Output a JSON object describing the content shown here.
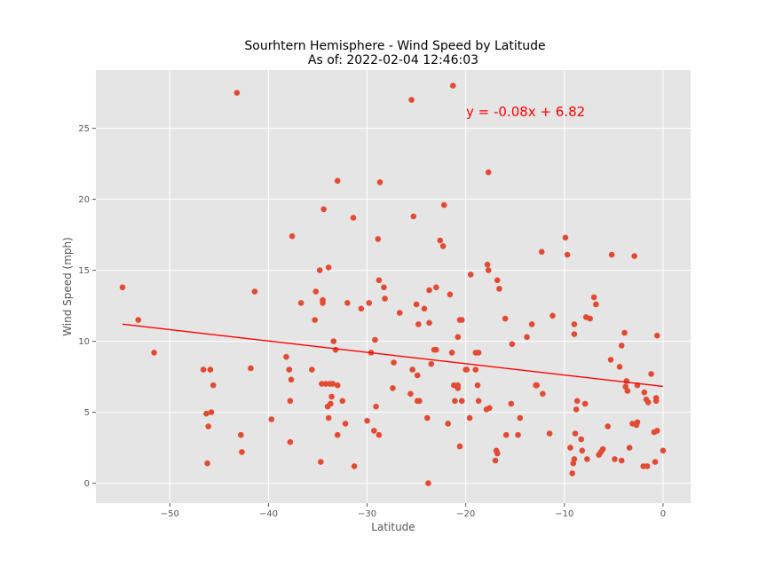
{
  "chart_data": {
    "type": "scatter",
    "title": "Sourhtern Hemisphere - Wind Speed by Latitude",
    "subtitle": "As of: 2022-02-04 12:46:03",
    "xlabel": "Latitude",
    "ylabel": "Wind Speed  (mph)",
    "xlim": [
      -57.5,
      2.8
    ],
    "ylim": [
      -1.4,
      29.1
    ],
    "xticks": [
      -50,
      -40,
      -30,
      -20,
      -10,
      0
    ],
    "yticks": [
      0,
      5,
      10,
      15,
      20,
      25
    ],
    "xtick_labels": [
      "−50",
      "−40",
      "−30",
      "−20",
      "−10",
      "0"
    ],
    "ytick_labels": [
      "0",
      "5",
      "10",
      "15",
      "20",
      "25"
    ],
    "grid": true,
    "colors": {
      "background": "#e5e5e5",
      "grid": "#ffffff",
      "points": "#e24a33",
      "regression": "#ff0000"
    },
    "regression": {
      "equation": "y = -0.08x + 6.82",
      "slope": -0.08,
      "intercept": 6.82,
      "x_range": [
        -54.8,
        0
      ]
    },
    "points": [
      [
        -54.8,
        13.8
      ],
      [
        -53.2,
        11.5
      ],
      [
        -51.6,
        9.2
      ],
      [
        -46.6,
        8.0
      ],
      [
        -46.3,
        4.9
      ],
      [
        -46.2,
        1.4
      ],
      [
        -46.1,
        4.0
      ],
      [
        -45.9,
        8.0
      ],
      [
        -45.8,
        5.0
      ],
      [
        -45.6,
        6.9
      ],
      [
        -43.2,
        27.5
      ],
      [
        -42.8,
        3.4
      ],
      [
        -42.7,
        2.2
      ],
      [
        -41.8,
        8.1
      ],
      [
        -41.4,
        13.5
      ],
      [
        -39.7,
        4.5
      ],
      [
        -38.2,
        8.9
      ],
      [
        -37.9,
        8.0
      ],
      [
        -37.8,
        5.8
      ],
      [
        -37.8,
        2.9
      ],
      [
        -37.7,
        7.3
      ],
      [
        -37.6,
        17.4
      ],
      [
        -36.7,
        12.7
      ],
      [
        -35.6,
        8.0
      ],
      [
        -35.3,
        11.5
      ],
      [
        -35.2,
        13.5
      ],
      [
        -34.8,
        15.0
      ],
      [
        -34.7,
        1.5
      ],
      [
        -34.6,
        7.0
      ],
      [
        -34.5,
        12.9
      ],
      [
        -34.5,
        12.7
      ],
      [
        -34.4,
        19.3
      ],
      [
        -34.2,
        7.0
      ],
      [
        -34.0,
        5.4
      ],
      [
        -33.9,
        4.6
      ],
      [
        -33.9,
        15.2
      ],
      [
        -33.8,
        7.0
      ],
      [
        -33.7,
        5.6
      ],
      [
        -33.6,
        6.1
      ],
      [
        -33.5,
        7.0
      ],
      [
        -33.4,
        10.0
      ],
      [
        -33.2,
        9.4
      ],
      [
        -33.0,
        6.9
      ],
      [
        -33.0,
        3.4
      ],
      [
        -33.0,
        21.3
      ],
      [
        -32.5,
        5.8
      ],
      [
        -32.2,
        4.2
      ],
      [
        -32.0,
        12.7
      ],
      [
        -31.4,
        18.7
      ],
      [
        -31.3,
        1.2
      ],
      [
        -30.6,
        12.3
      ],
      [
        -30.0,
        4.4
      ],
      [
        -29.8,
        12.7
      ],
      [
        -29.6,
        9.2
      ],
      [
        -29.3,
        3.7
      ],
      [
        -29.2,
        10.1
      ],
      [
        -29.1,
        5.4
      ],
      [
        -28.9,
        17.2
      ],
      [
        -28.8,
        14.3
      ],
      [
        -28.8,
        3.4
      ],
      [
        -28.7,
        21.2
      ],
      [
        -28.3,
        13.8
      ],
      [
        -28.2,
        13.0
      ],
      [
        -27.4,
        6.7
      ],
      [
        -27.3,
        8.5
      ],
      [
        -26.7,
        12.0
      ],
      [
        -25.6,
        6.3
      ],
      [
        -25.5,
        27.0
      ],
      [
        -25.4,
        8.0
      ],
      [
        -25.3,
        18.8
      ],
      [
        -25.0,
        12.6
      ],
      [
        -24.9,
        7.6
      ],
      [
        -24.9,
        5.8
      ],
      [
        -24.8,
        11.2
      ],
      [
        -24.7,
        5.8
      ],
      [
        -24.2,
        12.3
      ],
      [
        -23.9,
        4.6
      ],
      [
        -23.8,
        0.0
      ],
      [
        -23.7,
        13.6
      ],
      [
        -23.7,
        11.3
      ],
      [
        -23.5,
        8.4
      ],
      [
        -23.2,
        9.4
      ],
      [
        -23.0,
        13.8
      ],
      [
        -23.0,
        9.4
      ],
      [
        -22.6,
        17.1
      ],
      [
        -22.3,
        16.7
      ],
      [
        -22.2,
        19.6
      ],
      [
        -21.8,
        4.2
      ],
      [
        -21.6,
        13.3
      ],
      [
        -21.4,
        9.2
      ],
      [
        -21.3,
        28.0
      ],
      [
        -21.2,
        6.9
      ],
      [
        -21.1,
        5.8
      ],
      [
        -20.8,
        6.7
      ],
      [
        -20.8,
        6.9
      ],
      [
        -20.8,
        10.3
      ],
      [
        -20.6,
        2.6
      ],
      [
        -20.6,
        11.5
      ],
      [
        -20.4,
        11.5
      ],
      [
        -20.4,
        5.8
      ],
      [
        -20.0,
        8.0
      ],
      [
        -19.9,
        8.0
      ],
      [
        -19.6,
        4.6
      ],
      [
        -19.5,
        14.7
      ],
      [
        -19.0,
        9.2
      ],
      [
        -19.0,
        8.0
      ],
      [
        -18.8,
        6.9
      ],
      [
        -18.7,
        9.2
      ],
      [
        -18.7,
        5.8
      ],
      [
        -17.9,
        5.2
      ],
      [
        -17.8,
        15.4
      ],
      [
        -17.7,
        21.9
      ],
      [
        -17.7,
        15.0
      ],
      [
        -17.6,
        5.3
      ],
      [
        -17.0,
        1.6
      ],
      [
        -16.9,
        2.3
      ],
      [
        -16.8,
        2.1
      ],
      [
        -16.8,
        14.3
      ],
      [
        -16.6,
        13.7
      ],
      [
        -16.0,
        11.6
      ],
      [
        -15.9,
        3.4
      ],
      [
        -15.4,
        5.6
      ],
      [
        -15.3,
        9.8
      ],
      [
        -14.7,
        3.4
      ],
      [
        -14.5,
        4.6
      ],
      [
        -13.8,
        10.3
      ],
      [
        -13.3,
        11.2
      ],
      [
        -12.9,
        6.9
      ],
      [
        -12.8,
        6.9
      ],
      [
        -12.3,
        16.3
      ],
      [
        -12.2,
        6.3
      ],
      [
        -11.5,
        3.5
      ],
      [
        -11.2,
        11.8
      ],
      [
        -9.9,
        17.3
      ],
      [
        -9.7,
        16.1
      ],
      [
        -9.4,
        2.5
      ],
      [
        -9.2,
        0.7
      ],
      [
        -9.1,
        1.4
      ],
      [
        -9.0,
        11.2
      ],
      [
        -9.0,
        1.7
      ],
      [
        -9.0,
        10.5
      ],
      [
        -8.9,
        3.5
      ],
      [
        -8.8,
        5.2
      ],
      [
        -8.7,
        5.8
      ],
      [
        -8.3,
        3.1
      ],
      [
        -8.2,
        2.3
      ],
      [
        -7.9,
        5.6
      ],
      [
        -7.8,
        11.7
      ],
      [
        -7.7,
        1.7
      ],
      [
        -7.4,
        11.6
      ],
      [
        -7.0,
        13.1
      ],
      [
        -6.8,
        12.6
      ],
      [
        -6.5,
        2.0
      ],
      [
        -6.3,
        2.2
      ],
      [
        -6.1,
        2.4
      ],
      [
        -5.6,
        4.0
      ],
      [
        -5.3,
        8.7
      ],
      [
        -5.2,
        16.1
      ],
      [
        -4.9,
        1.7
      ],
      [
        -4.4,
        8.2
      ],
      [
        -4.2,
        9.7
      ],
      [
        -4.2,
        1.6
      ],
      [
        -3.9,
        10.6
      ],
      [
        -3.8,
        6.8
      ],
      [
        -3.7,
        7.2
      ],
      [
        -3.6,
        6.5
      ],
      [
        -3.4,
        2.5
      ],
      [
        -3.1,
        4.2
      ],
      [
        -2.9,
        16.0
      ],
      [
        -2.7,
        4.1
      ],
      [
        -2.6,
        6.9
      ],
      [
        -2.6,
        4.3
      ],
      [
        -2.0,
        1.2
      ],
      [
        -1.9,
        6.4
      ],
      [
        -1.7,
        5.9
      ],
      [
        -1.6,
        1.2
      ],
      [
        -1.5,
        5.7
      ],
      [
        -1.2,
        7.7
      ],
      [
        -0.9,
        3.6
      ],
      [
        -0.8,
        1.5
      ],
      [
        -0.7,
        6.0
      ],
      [
        -0.7,
        5.8
      ],
      [
        -0.6,
        3.7
      ],
      [
        -0.6,
        10.4
      ],
      [
        0.0,
        2.3
      ]
    ]
  }
}
